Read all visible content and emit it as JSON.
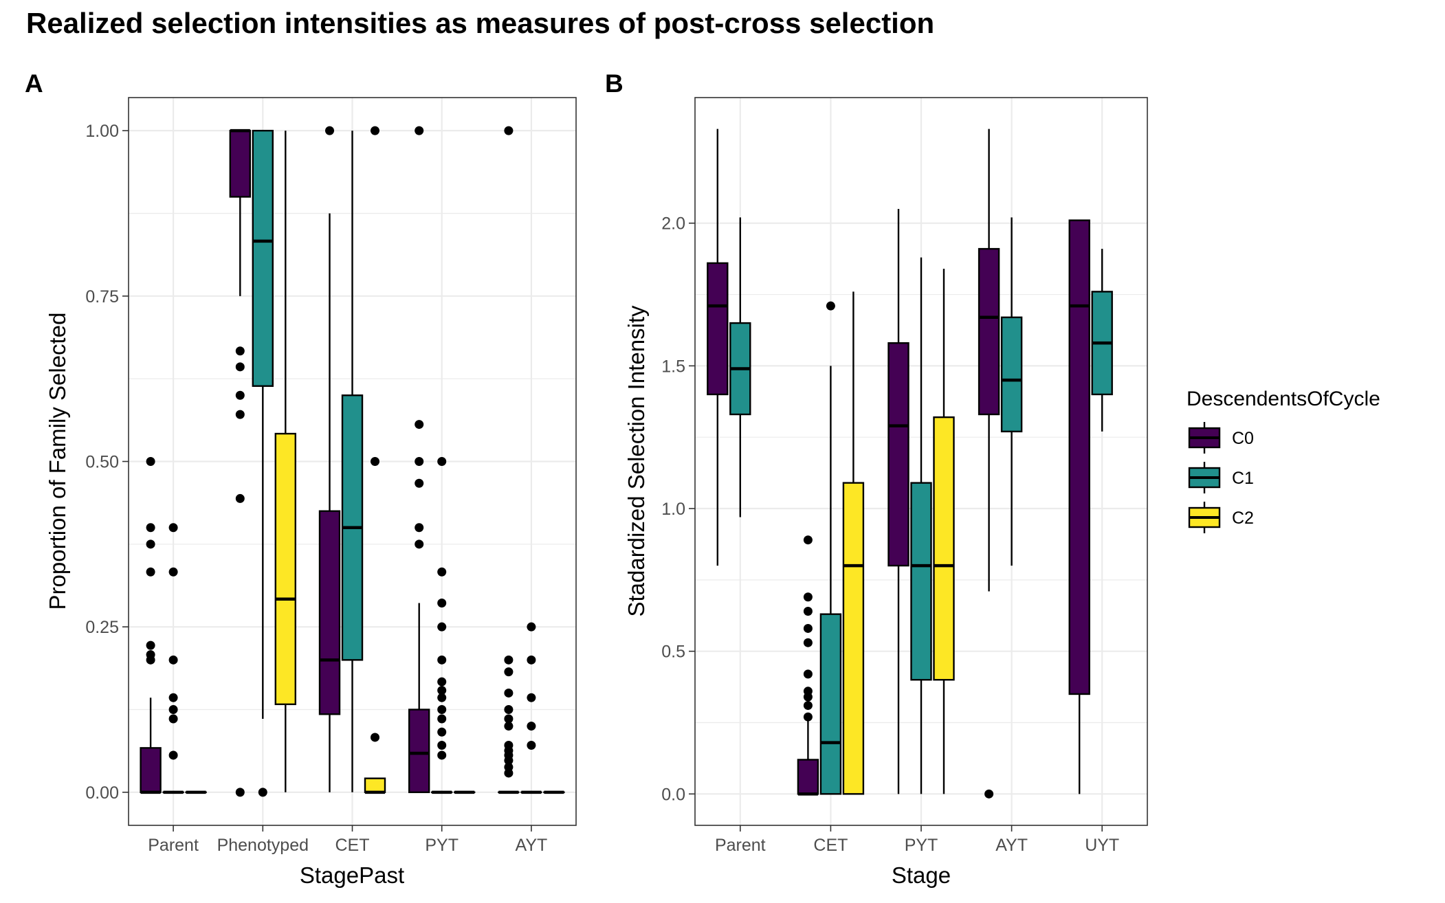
{
  "figure": {
    "title": "Realized selection intensities as measures of post-cross selection"
  },
  "legend": {
    "title": "DescendentsOfCycle",
    "items": [
      {
        "label": "C0",
        "color": "#440154"
      },
      {
        "label": "C1",
        "color": "#21908C"
      },
      {
        "label": "C2",
        "color": "#FDE725"
      }
    ]
  },
  "chart_data": [
    {
      "type": "boxplot",
      "panel_tag": "A",
      "xlabel": "StagePast",
      "ylabel": "Proportion of Family Selected",
      "ylim": [
        -0.05,
        1.05
      ],
      "yticks": [
        0,
        0.25,
        0.5,
        0.75,
        1
      ],
      "ytick_labels": [
        "0.00",
        "0.25",
        "0.50",
        "0.75",
        "1.00"
      ],
      "grid": true,
      "categories": [
        "Parent",
        "Phenotyped",
        "CET",
        "PYT",
        "AYT"
      ],
      "series": [
        {
          "name": "C0",
          "boxes": [
            {
              "min": 0,
              "q1": 0,
              "median": 0,
              "q3": 0.067,
              "max": 0.143,
              "outliers": [
                0.2,
                0.208,
                0.222,
                0.333,
                0.375,
                0.4,
                0.5
              ]
            },
            {
              "min": 0.75,
              "q1": 0.9,
              "median": 1,
              "q3": 1,
              "max": 1,
              "outliers": [
                0,
                0.444,
                0.571,
                0.6,
                0.643,
                0.667
              ]
            },
            {
              "min": 0,
              "q1": 0.118,
              "median": 0.2,
              "q3": 0.425,
              "max": 0.875,
              "outliers": [
                1
              ]
            },
            {
              "min": 0,
              "q1": 0,
              "median": 0.059,
              "q3": 0.125,
              "max": 0.286,
              "outliers": [
                0.375,
                0.4,
                0.467,
                0.5,
                0.556,
                1
              ]
            },
            {
              "min": 0,
              "q1": 0,
              "median": 0,
              "q3": 0,
              "max": 0,
              "outliers": [
                0.029,
                0.038,
                0.048,
                0.056,
                0.063,
                0.071,
                0.1,
                0.111,
                0.125,
                0.15,
                0.182,
                0.2,
                1
              ]
            }
          ]
        },
        {
          "name": "C1",
          "boxes": [
            {
              "min": 0,
              "q1": 0,
              "median": 0,
              "q3": 0,
              "max": 0,
              "outliers": [
                0.056,
                0.111,
                0.125,
                0.143,
                0.2,
                0.333,
                0.4
              ]
            },
            {
              "min": 0.111,
              "q1": 0.614,
              "median": 0.833,
              "q3": 1,
              "max": 1,
              "outliers": [
                0
              ]
            },
            {
              "min": 0,
              "q1": 0.2,
              "median": 0.4,
              "q3": 0.6,
              "max": 1,
              "outliers": []
            },
            {
              "min": 0,
              "q1": 0,
              "median": 0,
              "q3": 0,
              "max": 0,
              "outliers": [
                0.056,
                0.071,
                0.091,
                0.111,
                0.125,
                0.143,
                0.154,
                0.167,
                0.2,
                0.25,
                0.286,
                0.333,
                0.5
              ]
            },
            {
              "min": 0,
              "q1": 0,
              "median": 0,
              "q3": 0,
              "max": 0,
              "outliers": [
                0.071,
                0.1,
                0.143,
                0.2,
                0.25
              ]
            }
          ]
        },
        {
          "name": "C2",
          "boxes": [
            {
              "min": 0,
              "q1": 0,
              "median": 0,
              "q3": 0,
              "max": 0,
              "outliers": []
            },
            {
              "min": 0,
              "q1": 0.133,
              "median": 0.292,
              "q3": 0.542,
              "max": 1,
              "outliers": []
            },
            {
              "min": 0,
              "q1": 0,
              "median": 0,
              "q3": 0.021,
              "max": 0.021,
              "outliers": [
                0.083,
                0.5,
                1
              ]
            },
            {
              "min": 0,
              "q1": 0,
              "median": 0,
              "q3": 0,
              "max": 0,
              "outliers": []
            },
            {
              "min": 0,
              "q1": 0,
              "median": 0,
              "q3": 0,
              "max": 0,
              "outliers": []
            }
          ]
        }
      ]
    },
    {
      "type": "boxplot",
      "panel_tag": "B",
      "xlabel": "Stage",
      "ylabel": "Stadardized Selection Intensity",
      "ylim": [
        -0.11,
        2.44
      ],
      "yticks": [
        0,
        0.5,
        1,
        1.5,
        2
      ],
      "ytick_labels": [
        "0.0",
        "0.5",
        "1.0",
        "1.5",
        "2.0"
      ],
      "grid": true,
      "categories": [
        "Parent",
        "CET",
        "PYT",
        "AYT",
        "UYT"
      ],
      "series": [
        {
          "name": "C0",
          "boxes": [
            {
              "min": 0.8,
              "q1": 1.4,
              "median": 1.71,
              "q3": 1.86,
              "max": 2.33,
              "outliers": []
            },
            {
              "min": 0,
              "q1": 0,
              "median": 0,
              "q3": 0.12,
              "max": 0.26,
              "outliers": [
                0.27,
                0.31,
                0.34,
                0.36,
                0.42,
                0.53,
                0.58,
                0.64,
                0.69,
                0.89
              ]
            },
            {
              "min": 0,
              "q1": 0.8,
              "median": 1.29,
              "q3": 1.58,
              "max": 2.05,
              "outliers": []
            },
            {
              "min": 0.71,
              "q1": 1.33,
              "median": 1.67,
              "q3": 1.91,
              "max": 2.33,
              "outliers": [
                0
              ]
            },
            {
              "min": 0,
              "q1": 0.35,
              "median": 1.71,
              "q3": 2.01,
              "max": 2.01,
              "outliers": []
            }
          ]
        },
        {
          "name": "C1",
          "boxes": [
            {
              "min": 0.97,
              "q1": 1.33,
              "median": 1.49,
              "q3": 1.65,
              "max": 2.02,
              "outliers": []
            },
            {
              "min": 0,
              "q1": 0,
              "median": 0.18,
              "q3": 0.63,
              "max": 1.5,
              "outliers": [
                1.71
              ]
            },
            {
              "min": 0,
              "q1": 0.4,
              "median": 0.8,
              "q3": 1.09,
              "max": 1.88,
              "outliers": []
            },
            {
              "min": 0.8,
              "q1": 1.27,
              "median": 1.45,
              "q3": 1.67,
              "max": 2.02,
              "outliers": []
            },
            {
              "min": 1.27,
              "q1": 1.4,
              "median": 1.58,
              "q3": 1.76,
              "max": 1.91,
              "outliers": []
            }
          ]
        },
        {
          "name": "C2",
          "boxes": [
            null,
            {
              "min": 0,
              "q1": 0,
              "median": 0.8,
              "q3": 1.09,
              "max": 1.76,
              "outliers": []
            },
            {
              "min": 0,
              "q1": 0.4,
              "median": 0.8,
              "q3": 1.32,
              "max": 1.84,
              "outliers": []
            },
            null,
            null
          ]
        }
      ]
    }
  ]
}
